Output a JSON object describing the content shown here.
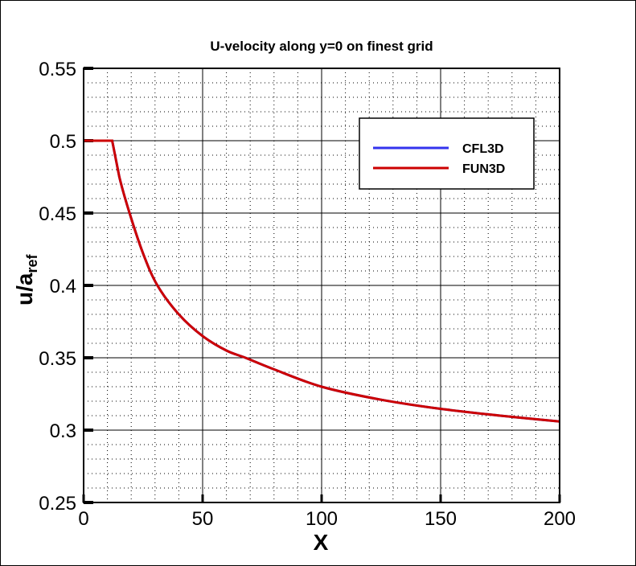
{
  "chart_data": {
    "type": "line",
    "title": "U-velocity along y=0 on finest grid",
    "xlabel": "X",
    "ylabel_main": "u/a",
    "ylabel_sub": "ref",
    "xlim": [
      0,
      200
    ],
    "ylim": [
      0.25,
      0.55
    ],
    "xticks": [
      "0",
      "50",
      "100",
      "150",
      "200"
    ],
    "yticks": [
      "0.25",
      "0.3",
      "0.35",
      "0.4",
      "0.45",
      "0.5",
      "0.55"
    ],
    "grid": true,
    "legend_position": "top-right",
    "series": [
      {
        "name": "CFL3D",
        "color": "#3333ee",
        "x": [
          0,
          12,
          15,
          19.3,
          25,
          31,
          40,
          50,
          60,
          68,
          80,
          100,
          125,
          150,
          175,
          200
        ],
        "y": [
          0.5,
          0.5,
          0.475,
          0.45,
          0.422,
          0.4,
          0.38,
          0.365,
          0.355,
          0.35,
          0.342,
          0.33,
          0.321,
          0.3147,
          0.31,
          0.306
        ]
      },
      {
        "name": "FUN3D",
        "color": "#cc0000",
        "x": [
          0,
          12,
          15,
          19.3,
          25,
          31,
          40,
          50,
          60,
          68,
          80,
          100,
          125,
          150,
          175,
          200
        ],
        "y": [
          0.5,
          0.5,
          0.475,
          0.45,
          0.422,
          0.4,
          0.38,
          0.365,
          0.355,
          0.35,
          0.342,
          0.33,
          0.321,
          0.3147,
          0.31,
          0.306
        ]
      }
    ]
  }
}
